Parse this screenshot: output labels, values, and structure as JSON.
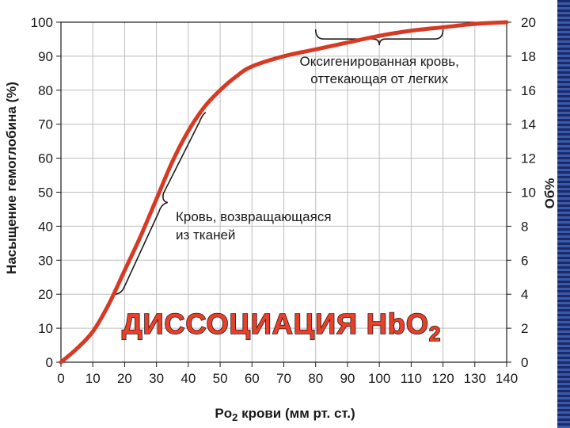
{
  "chart_data": {
    "type": "line",
    "title": "ДИССОЦИАЦИЯ HbO",
    "title_subscript": "2",
    "xlabel": "Po",
    "xlabel_subscript": "2",
    "xlabel_rest": " крови (мм рт. ст.)",
    "ylabel": "Насыщение гемоглобина (%)",
    "y2label": "Об%",
    "xlim": [
      0,
      140
    ],
    "ylim": [
      0,
      100
    ],
    "y2lim": [
      0,
      20
    ],
    "x_ticks": [
      "0",
      "10",
      "20",
      "30",
      "40",
      "50",
      "60",
      "70",
      "80",
      "90",
      "100",
      "110",
      "120",
      "130",
      "140"
    ],
    "y_ticks": [
      "0",
      "10",
      "20",
      "30",
      "40",
      "50",
      "60",
      "70",
      "80",
      "90",
      "100"
    ],
    "y2_ticks": [
      "0",
      "2",
      "4",
      "6",
      "8",
      "10",
      "12",
      "14",
      "16",
      "18",
      "20"
    ],
    "grid": true,
    "series": [
      {
        "color": "#d63a24",
        "x": [
          0,
          5,
          10,
          15,
          20,
          25,
          30,
          35,
          40,
          45,
          50,
          55,
          60,
          70,
          80,
          90,
          100,
          110,
          120,
          130,
          140
        ],
        "y": [
          0,
          4,
          9,
          17,
          27,
          37,
          48,
          59,
          68,
          75,
          80,
          84,
          87,
          90,
          92,
          94,
          96,
          97.5,
          98.5,
          99.5,
          100
        ]
      }
    ],
    "annotations": [
      {
        "lines": [
          "Оксигенированная кровь,",
          "оттекающая от легких"
        ],
        "bracket_x_range": [
          80,
          120
        ],
        "bracket_y": 96
      },
      {
        "lines": [
          "Кровь, возвращающаяся",
          "из тканей"
        ],
        "bracket_x_range": [
          18,
          45
        ],
        "bracket_y_range": [
          20,
          73
        ]
      }
    ]
  },
  "colors": {
    "curve": "#d63a24",
    "grid": "#bdbdbd",
    "overlay_fill": "#e8402a",
    "overlay_stroke": "#2a1a1a"
  }
}
